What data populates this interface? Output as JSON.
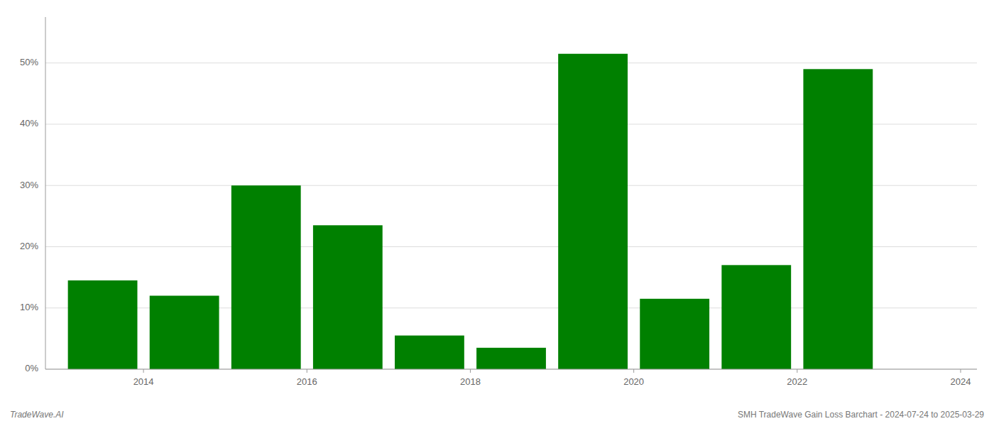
{
  "chart_data": {
    "type": "bar",
    "x": [
      2013.5,
      2014.5,
      2015.5,
      2016.5,
      2017.5,
      2018.5,
      2019.5,
      2020.5,
      2021.5,
      2022.5
    ],
    "values": [
      0.145,
      0.12,
      0.3,
      0.235,
      0.055,
      0.035,
      0.515,
      0.115,
      0.17,
      0.49
    ],
    "color": "#008000",
    "xlim": [
      2012.8,
      2024.2
    ],
    "xticks": [
      2014,
      2016,
      2018,
      2020,
      2022,
      2024
    ],
    "ylim": [
      0,
      0.575
    ],
    "yticks": [
      {
        "value": 0.0,
        "label": "0%"
      },
      {
        "value": 0.1,
        "label": "10%"
      },
      {
        "value": 0.2,
        "label": "20%"
      },
      {
        "value": 0.3,
        "label": "30%"
      },
      {
        "value": 0.4,
        "label": "40%"
      },
      {
        "value": 0.5,
        "label": "50%"
      }
    ],
    "grid": true,
    "annotations": [
      "TradeWave.AI",
      "SMH TradeWave Gain Loss Barchart - 2024-07-24 to 2025-03-29"
    ]
  }
}
